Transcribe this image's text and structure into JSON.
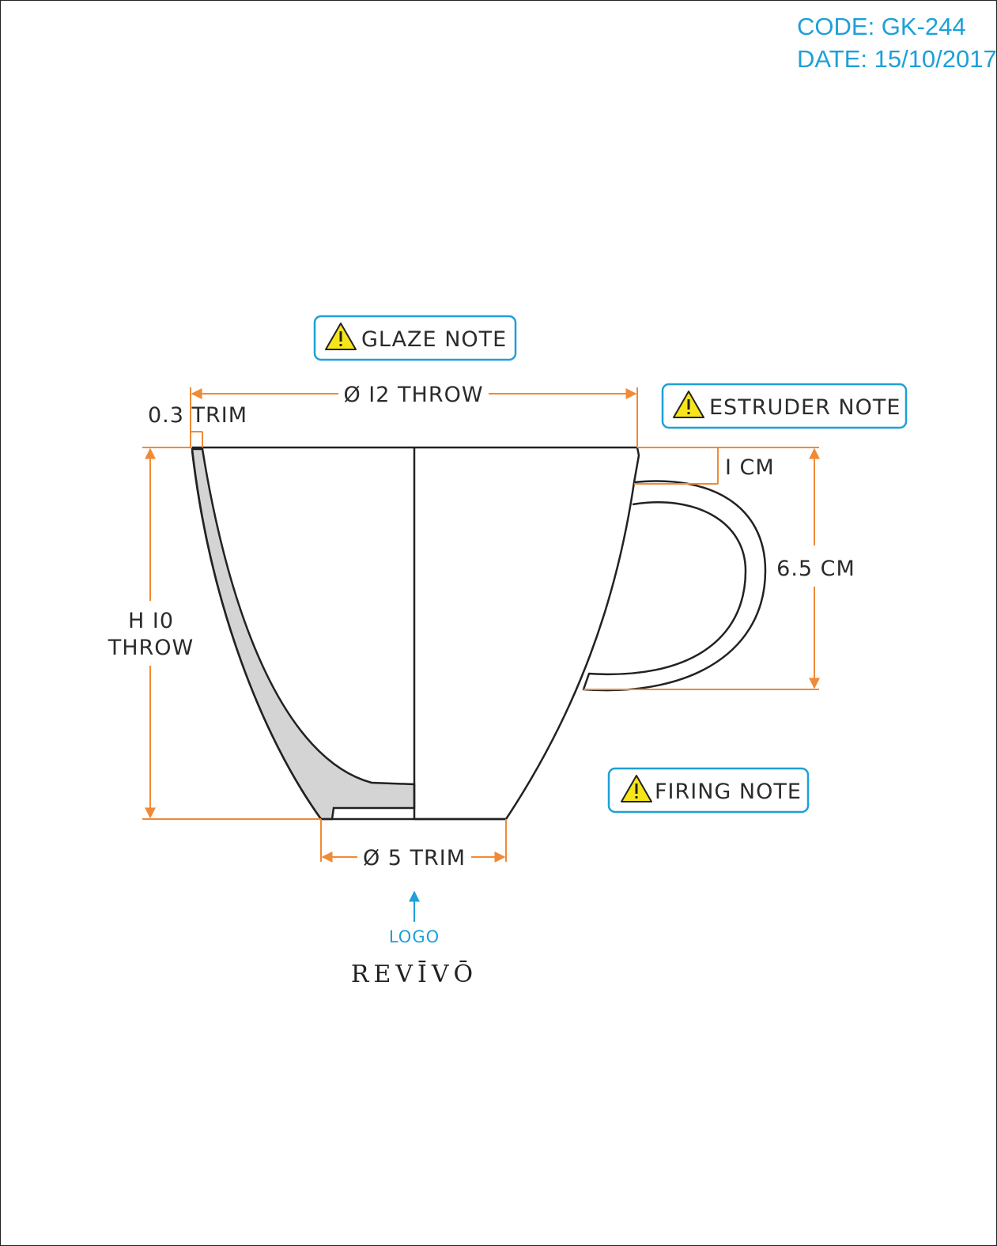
{
  "header": {
    "code": "CODE: GK-244",
    "date": "DATE: 15/10/2017"
  },
  "notes": {
    "glaze": "GLAZE NOTE",
    "estruder": "ESTRUDER NOTE",
    "firing": "FIRING NOTE",
    "icon": "warning-icon"
  },
  "dimensions": {
    "top_diameter": "Ø I2 THROW",
    "rim_trim": "0.3 TRIM",
    "height_line1": "H I0",
    "height_line2": "THROW",
    "handle_offset": "I CM",
    "handle_height": "6.5 CM",
    "base_diameter": "Ø 5 TRIM"
  },
  "logo": {
    "label": "LOGO",
    "brand": "REVĪVŌ"
  },
  "colors": {
    "dimension_lines": "#f08a35",
    "accent": "#1ea0d8",
    "outline": "#222222",
    "section_fill": "#d4d4d4",
    "warning_fill": "#f7e51b"
  }
}
